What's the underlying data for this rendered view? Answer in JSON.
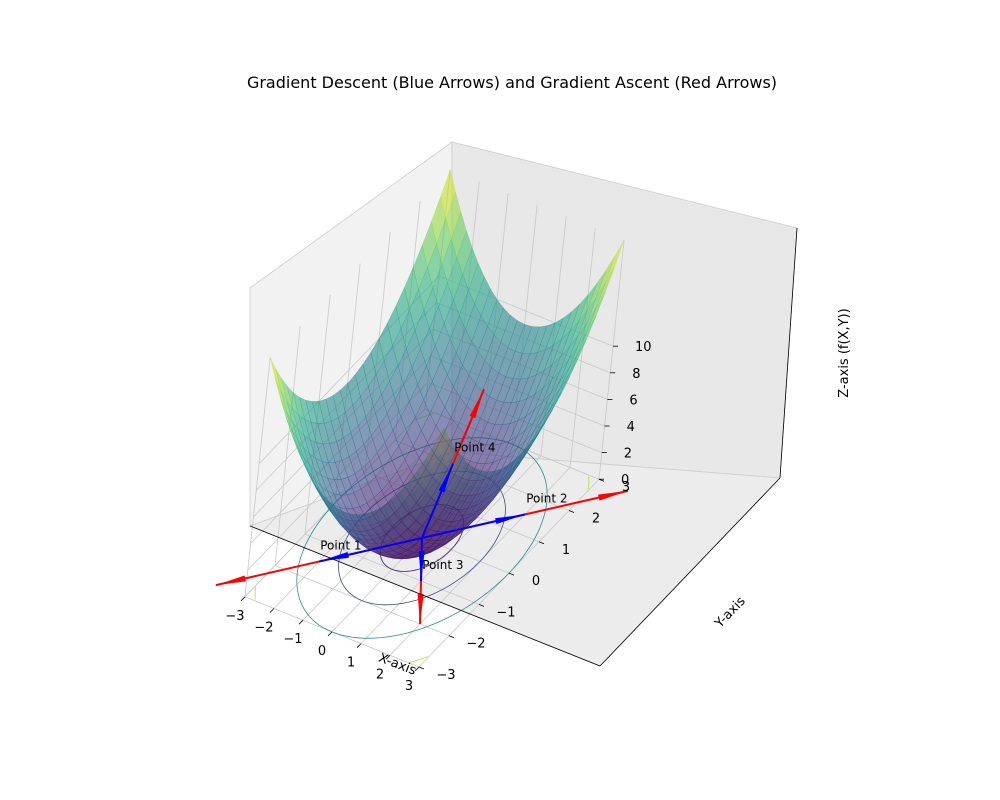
{
  "chart_data": {
    "type": "surface3d",
    "title": "Gradient Descent (Blue Arrows) and Gradient Ascent (Red Arrows)",
    "function": "f(X,Y) = X^2 + Y^2",
    "xlabel": "X-axis",
    "ylabel": "Y-axis",
    "zlabel": "Z-axis (f(X,Y))",
    "xlim": [
      -3,
      3
    ],
    "ylim": [
      -3,
      3
    ],
    "zlim": [
      0,
      18
    ],
    "x_ticks": [
      "−3",
      "−2",
      "−1",
      "0",
      "1",
      "2",
      "3"
    ],
    "y_ticks": [
      "−3",
      "−2",
      "−1",
      "0",
      "1",
      "2",
      "3"
    ],
    "z_ticks": [
      "0",
      "2",
      "4",
      "6",
      "8",
      "10"
    ],
    "colormap": "viridis",
    "contour_levels": [
      1,
      2,
      3,
      4,
      5,
      6,
      7
    ],
    "points": [
      {
        "label": "Point 1",
        "x": -2.0,
        "y": -1.5
      },
      {
        "label": "Point 2",
        "x": 2.0,
        "y": 1.5
      },
      {
        "label": "Point 3",
        "x": 1.0,
        "y": -1.0
      },
      {
        "label": "Point 4",
        "x": -1.0,
        "y": 2.0
      }
    ],
    "descent_color": "#0000ff",
    "ascent_color": "#ff0000"
  }
}
